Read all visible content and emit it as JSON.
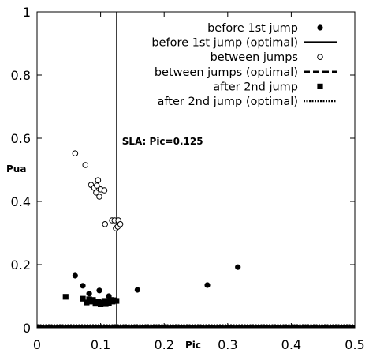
{
  "chart_data": {
    "type": "scatter",
    "xlabel": "Pic",
    "ylabel": "Pua",
    "xlim": [
      0,
      0.5
    ],
    "ylim": [
      0,
      1
    ],
    "x_ticks": [
      "0",
      "0.1",
      "0.2",
      "0.3",
      "0.4",
      "0.5"
    ],
    "y_ticks": [
      "0",
      "0.2",
      "0.4",
      "0.6",
      "0.8",
      "1"
    ],
    "grid": false,
    "legend_position": "top-right",
    "annotation": {
      "text": "SLA: Pic=0.125",
      "x": 0.125
    },
    "series": [
      {
        "name": "before 1st jump",
        "marker": "filled-circle",
        "points": [
          [
            0.06,
            0.165
          ],
          [
            0.072,
            0.133
          ],
          [
            0.082,
            0.108
          ],
          [
            0.098,
            0.118
          ],
          [
            0.113,
            0.1
          ],
          [
            0.158,
            0.12
          ],
          [
            0.268,
            0.135
          ],
          [
            0.316,
            0.192
          ]
        ]
      },
      {
        "name": "before 1st jump (optimal)",
        "line": "solid",
        "points": [
          [
            0,
            0.004
          ],
          [
            0.5,
            0.004
          ]
        ]
      },
      {
        "name": "between jumps",
        "marker": "open-circle",
        "points": [
          [
            0.06,
            0.552
          ],
          [
            0.076,
            0.515
          ],
          [
            0.085,
            0.452
          ],
          [
            0.09,
            0.443
          ],
          [
            0.094,
            0.45
          ],
          [
            0.096,
            0.467
          ],
          [
            0.093,
            0.428
          ],
          [
            0.098,
            0.415
          ],
          [
            0.1,
            0.438
          ],
          [
            0.106,
            0.435
          ],
          [
            0.107,
            0.328
          ],
          [
            0.118,
            0.34
          ],
          [
            0.122,
            0.34
          ],
          [
            0.124,
            0.315
          ],
          [
            0.127,
            0.32
          ],
          [
            0.128,
            0.34
          ],
          [
            0.131,
            0.328
          ]
        ]
      },
      {
        "name": "between jumps (optimal)",
        "line": "dashed",
        "points": [
          [
            0,
            0.006
          ],
          [
            0.5,
            0.006
          ]
        ]
      },
      {
        "name": "after 2nd jump",
        "marker": "filled-square",
        "points": [
          [
            0.045,
            0.098
          ],
          [
            0.072,
            0.092
          ],
          [
            0.078,
            0.08
          ],
          [
            0.082,
            0.09
          ],
          [
            0.085,
            0.083
          ],
          [
            0.088,
            0.088
          ],
          [
            0.092,
            0.076
          ],
          [
            0.096,
            0.082
          ],
          [
            0.1,
            0.074
          ],
          [
            0.103,
            0.08
          ],
          [
            0.106,
            0.085
          ],
          [
            0.108,
            0.075
          ],
          [
            0.11,
            0.083
          ],
          [
            0.113,
            0.078
          ],
          [
            0.116,
            0.088
          ],
          [
            0.119,
            0.083
          ],
          [
            0.122,
            0.087
          ],
          [
            0.125,
            0.085
          ]
        ]
      },
      {
        "name": "after 2nd jump (optimal)",
        "line": "dotted",
        "points": [
          [
            0,
            0.008
          ],
          [
            0.5,
            0.008
          ]
        ]
      }
    ]
  }
}
